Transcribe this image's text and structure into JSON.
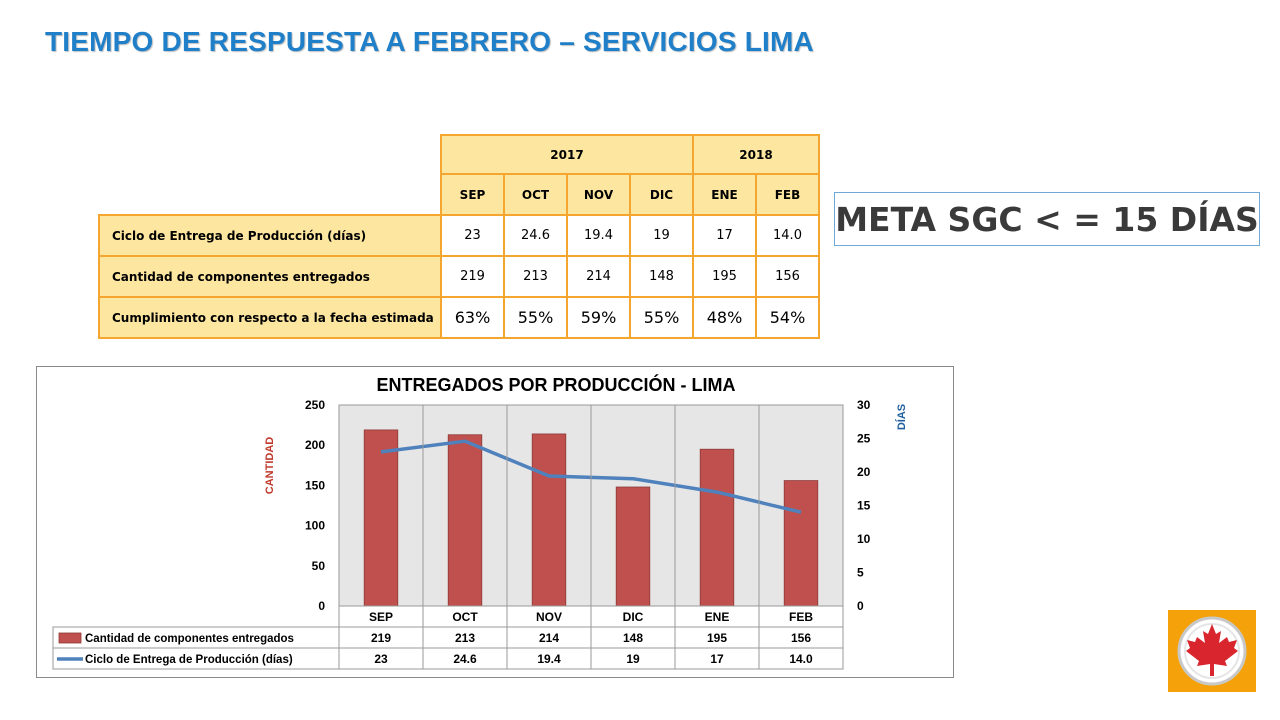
{
  "page": {
    "title": "TIEMPO DE RESPUESTA A FEBRERO – SERVICIOS LIMA",
    "meta": "META SGC < = 15 DÍAS"
  },
  "summary_table": {
    "years": [
      {
        "label": "2017",
        "span": 4
      },
      {
        "label": "2018",
        "span": 2
      }
    ],
    "months": [
      "SEP",
      "OCT",
      "NOV",
      "DIC",
      "ENE",
      "FEB"
    ],
    "rows": [
      {
        "label": "Ciclo de Entrega de Producción (días)",
        "values": [
          "23",
          "24.6",
          "19.4",
          "19",
          "17",
          "14.0"
        ]
      },
      {
        "label": "Cantidad de componentes entregados",
        "values": [
          "219",
          "213",
          "214",
          "148",
          "195",
          "156"
        ]
      },
      {
        "label": "Cumplimiento con respecto a la fecha estimada",
        "values": [
          "63%",
          "55%",
          "59%",
          "55%",
          "48%",
          "54%"
        ]
      }
    ]
  },
  "chart_data": {
    "type": "bar",
    "title": "ENTREGADOS POR PRODUCCIÓN - LIMA",
    "categories": [
      "SEP",
      "OCT",
      "NOV",
      "DIC",
      "ENE",
      "FEB"
    ],
    "ylabel": "CANTIDAD",
    "y2label": "DÍAS",
    "ylim": [
      0,
      250
    ],
    "y2lim": [
      0,
      30
    ],
    "yticks": [
      0,
      50,
      100,
      150,
      200,
      250
    ],
    "y2ticks": [
      0,
      5,
      10,
      15,
      20,
      25,
      30
    ],
    "legend": "bottom-table",
    "series": [
      {
        "name": "Cantidad de componentes entregados",
        "type": "bar",
        "axis": "left",
        "color": "#c0504d",
        "values": [
          219,
          213,
          214,
          148,
          195,
          156
        ],
        "labels": [
          "219",
          "213",
          "214",
          "148",
          "195",
          "156"
        ]
      },
      {
        "name": "Ciclo de Entrega de Producción (días)",
        "type": "line",
        "axis": "right",
        "color": "#4f81bd",
        "values": [
          23,
          24.6,
          19.4,
          19,
          17,
          14.0
        ],
        "labels": [
          "23",
          "24.6",
          "19.4",
          "19",
          "17",
          "14.0"
        ]
      }
    ]
  },
  "logo": {
    "icon": "maple-leaf-icon",
    "color": "#f5a20a"
  }
}
